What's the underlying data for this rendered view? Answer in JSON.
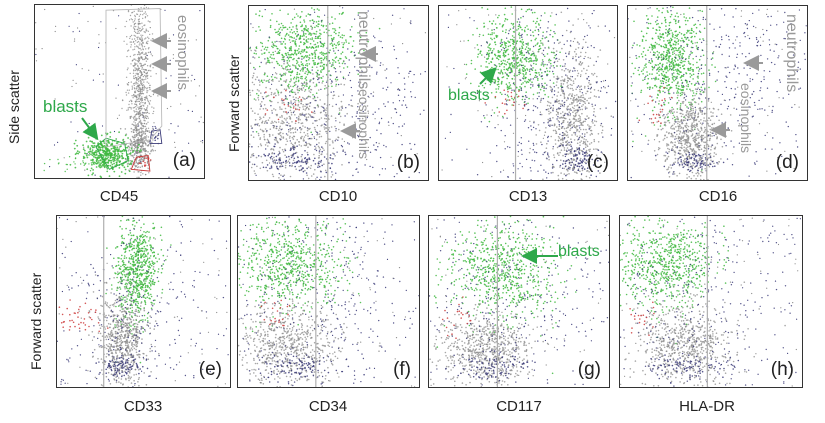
{
  "colors": {
    "blasts": "#3fb83f",
    "background_cells": "#8a8a8a",
    "dark_cells": "#3a3a78",
    "red_cells": "#cc3a3a",
    "annotation_gray": "#9a9a9a",
    "annotation_green": "#2ea84a",
    "gate_line": "#b0b0b0"
  },
  "chart_data": [
    {
      "type": "scatter",
      "panel": "(a)",
      "xlabel": "CD45",
      "ylabel": "Side scatter",
      "annotations": [
        "blasts",
        "eosinophils"
      ]
    },
    {
      "type": "scatter",
      "panel": "(b)",
      "xlabel": "CD10",
      "ylabel": "Forward scatter",
      "annotations": [
        "neutrophils",
        "eosinophils"
      ]
    },
    {
      "type": "scatter",
      "panel": "(c)",
      "xlabel": "CD13",
      "ylabel": "",
      "annotations": [
        "blasts"
      ]
    },
    {
      "type": "scatter",
      "panel": "(d)",
      "xlabel": "CD16",
      "ylabel": "",
      "annotations": [
        "neutrophils",
        "eosinophils"
      ]
    },
    {
      "type": "scatter",
      "panel": "(e)",
      "xlabel": "CD33",
      "ylabel": "Forward scatter",
      "annotations": []
    },
    {
      "type": "scatter",
      "panel": "(f)",
      "xlabel": "CD34",
      "ylabel": "",
      "annotations": []
    },
    {
      "type": "scatter",
      "panel": "(g)",
      "xlabel": "CD117",
      "ylabel": "",
      "annotations": [
        "blasts"
      ]
    },
    {
      "type": "scatter",
      "panel": "(h)",
      "xlabel": "HLA-DR",
      "ylabel": "",
      "annotations": []
    }
  ]
}
